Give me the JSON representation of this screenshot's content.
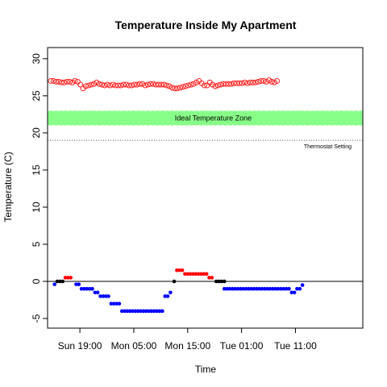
{
  "chart_data": {
    "type": "scatter",
    "title": "Temperature Inside My Apartment",
    "xlabel": "Time",
    "ylabel": "Temperature (C)",
    "x_unit": "hours since Sun 13:00",
    "xlim": [
      0,
      58.5
    ],
    "ylim": [
      -5,
      30
    ],
    "x_ticks": [
      {
        "x": 6,
        "label": "Sun 19:00"
      },
      {
        "x": 16,
        "label": "Mon 05:00"
      },
      {
        "x": 26,
        "label": "Mon 15:00"
      },
      {
        "x": 36,
        "label": "Tue 01:00"
      },
      {
        "x": 46,
        "label": "Tue 11:00"
      }
    ],
    "y_ticks": [
      -5,
      0,
      5,
      10,
      15,
      20,
      25,
      30
    ],
    "ideal_zone": {
      "label": "Ideal Temperature Zone",
      "ymin": 21,
      "ymax": 23,
      "color": "#88ff88"
    },
    "thermostat": {
      "label": "Thermostat Setting",
      "y": 19
    },
    "zero_line": 0,
    "inside": {
      "color": "#ff2020",
      "x_start": 0.6,
      "x_step": 0.5,
      "values": [
        27.0,
        27.0,
        26.9,
        26.9,
        26.8,
        26.8,
        26.9,
        26.9,
        26.8,
        27.0,
        26.9,
        26.5,
        26.0,
        26.3,
        26.4,
        26.5,
        26.6,
        26.8,
        26.6,
        26.5,
        26.4,
        26.5,
        26.4,
        26.5,
        26.4,
        26.4,
        26.4,
        26.5,
        26.5,
        26.4,
        26.4,
        26.5,
        26.5,
        26.6,
        26.6,
        26.4,
        26.5,
        26.6,
        26.6,
        26.5,
        26.5,
        26.5,
        26.5,
        26.4,
        26.3,
        26.1,
        26.0,
        26.0,
        26.1,
        26.2,
        26.3,
        26.4,
        26.5,
        26.6,
        26.8,
        27.0,
        26.7,
        26.4,
        26.4,
        26.8,
        26.5,
        26.3,
        26.4,
        26.5,
        26.6,
        26.6,
        26.6,
        26.6,
        26.7,
        26.7,
        26.7,
        26.7,
        26.8,
        26.7,
        26.8,
        26.8,
        26.8,
        26.9,
        27.0,
        27.0,
        26.9,
        27.1,
        26.9,
        26.8,
        27.0
      ]
    },
    "outside": {
      "series": [
        {
          "name": "below",
          "color": "#0000ff",
          "points": [
            [
              1.3,
              -0.4
            ],
            [
              5.3,
              -0.4
            ],
            [
              5.8,
              -0.4
            ],
            [
              6.3,
              -1
            ],
            [
              6.8,
              -1
            ],
            [
              7.3,
              -1
            ],
            [
              7.8,
              -1
            ],
            [
              8.3,
              -1
            ],
            [
              8.8,
              -1.5
            ],
            [
              9.3,
              -1.5
            ],
            [
              9.8,
              -2
            ],
            [
              10.3,
              -2
            ],
            [
              10.8,
              -2
            ],
            [
              11.3,
              -2
            ],
            [
              11.8,
              -3
            ],
            [
              12.3,
              -3
            ],
            [
              12.8,
              -3
            ],
            [
              13.3,
              -3
            ],
            [
              13.8,
              -4
            ],
            [
              14.3,
              -4
            ],
            [
              14.8,
              -4
            ],
            [
              15.3,
              -4
            ],
            [
              15.8,
              -4
            ],
            [
              16.3,
              -4
            ],
            [
              16.8,
              -4
            ],
            [
              17.3,
              -4
            ],
            [
              17.8,
              -4
            ],
            [
              18.3,
              -4
            ],
            [
              18.8,
              -4
            ],
            [
              19.3,
              -4
            ],
            [
              19.8,
              -4
            ],
            [
              20.3,
              -4
            ],
            [
              20.8,
              -4
            ],
            [
              21.3,
              -4
            ],
            [
              21.8,
              -2
            ],
            [
              22.3,
              -2
            ],
            [
              22.8,
              -1.5
            ],
            [
              32.8,
              -1
            ],
            [
              33.3,
              -1
            ],
            [
              33.8,
              -1
            ],
            [
              34.3,
              -1
            ],
            [
              34.8,
              -1
            ],
            [
              35.3,
              -1
            ],
            [
              35.8,
              -1
            ],
            [
              36.3,
              -1
            ],
            [
              36.8,
              -1
            ],
            [
              37.3,
              -1
            ],
            [
              37.8,
              -1
            ],
            [
              38.3,
              -1
            ],
            [
              38.8,
              -1
            ],
            [
              39.3,
              -1
            ],
            [
              39.8,
              -1
            ],
            [
              40.3,
              -1
            ],
            [
              40.8,
              -1
            ],
            [
              41.3,
              -1
            ],
            [
              41.8,
              -1
            ],
            [
              42.3,
              -1
            ],
            [
              42.8,
              -1
            ],
            [
              43.3,
              -1
            ],
            [
              43.8,
              -1
            ],
            [
              44.3,
              -1
            ],
            [
              44.8,
              -1
            ],
            [
              45.3,
              -1.5
            ],
            [
              45.8,
              -1.5
            ],
            [
              46.3,
              -1
            ],
            [
              46.8,
              -1
            ],
            [
              47.3,
              -0.5
            ]
          ]
        },
        {
          "name": "zero",
          "color": "#000000",
          "points": [
            [
              1.8,
              0
            ],
            [
              2.3,
              0
            ],
            [
              2.8,
              0
            ],
            [
              23.5,
              0
            ],
            [
              31.3,
              0
            ],
            [
              31.8,
              0
            ],
            [
              32.3,
              0
            ],
            [
              32.8,
              0
            ]
          ]
        },
        {
          "name": "above",
          "color": "#ff0000",
          "points": [
            [
              3.3,
              0.5
            ],
            [
              3.8,
              0.5
            ],
            [
              4.3,
              0.5
            ],
            [
              24.0,
              1.5
            ],
            [
              24.5,
              1.5
            ],
            [
              25.0,
              1.5
            ],
            [
              25.5,
              1
            ],
            [
              26.0,
              1
            ],
            [
              26.5,
              1
            ],
            [
              27.0,
              1
            ],
            [
              27.5,
              1
            ],
            [
              28.0,
              1
            ],
            [
              28.5,
              1
            ],
            [
              29.0,
              1
            ],
            [
              29.5,
              1
            ],
            [
              30.0,
              0.5
            ],
            [
              30.5,
              0.5
            ]
          ]
        }
      ]
    }
  }
}
